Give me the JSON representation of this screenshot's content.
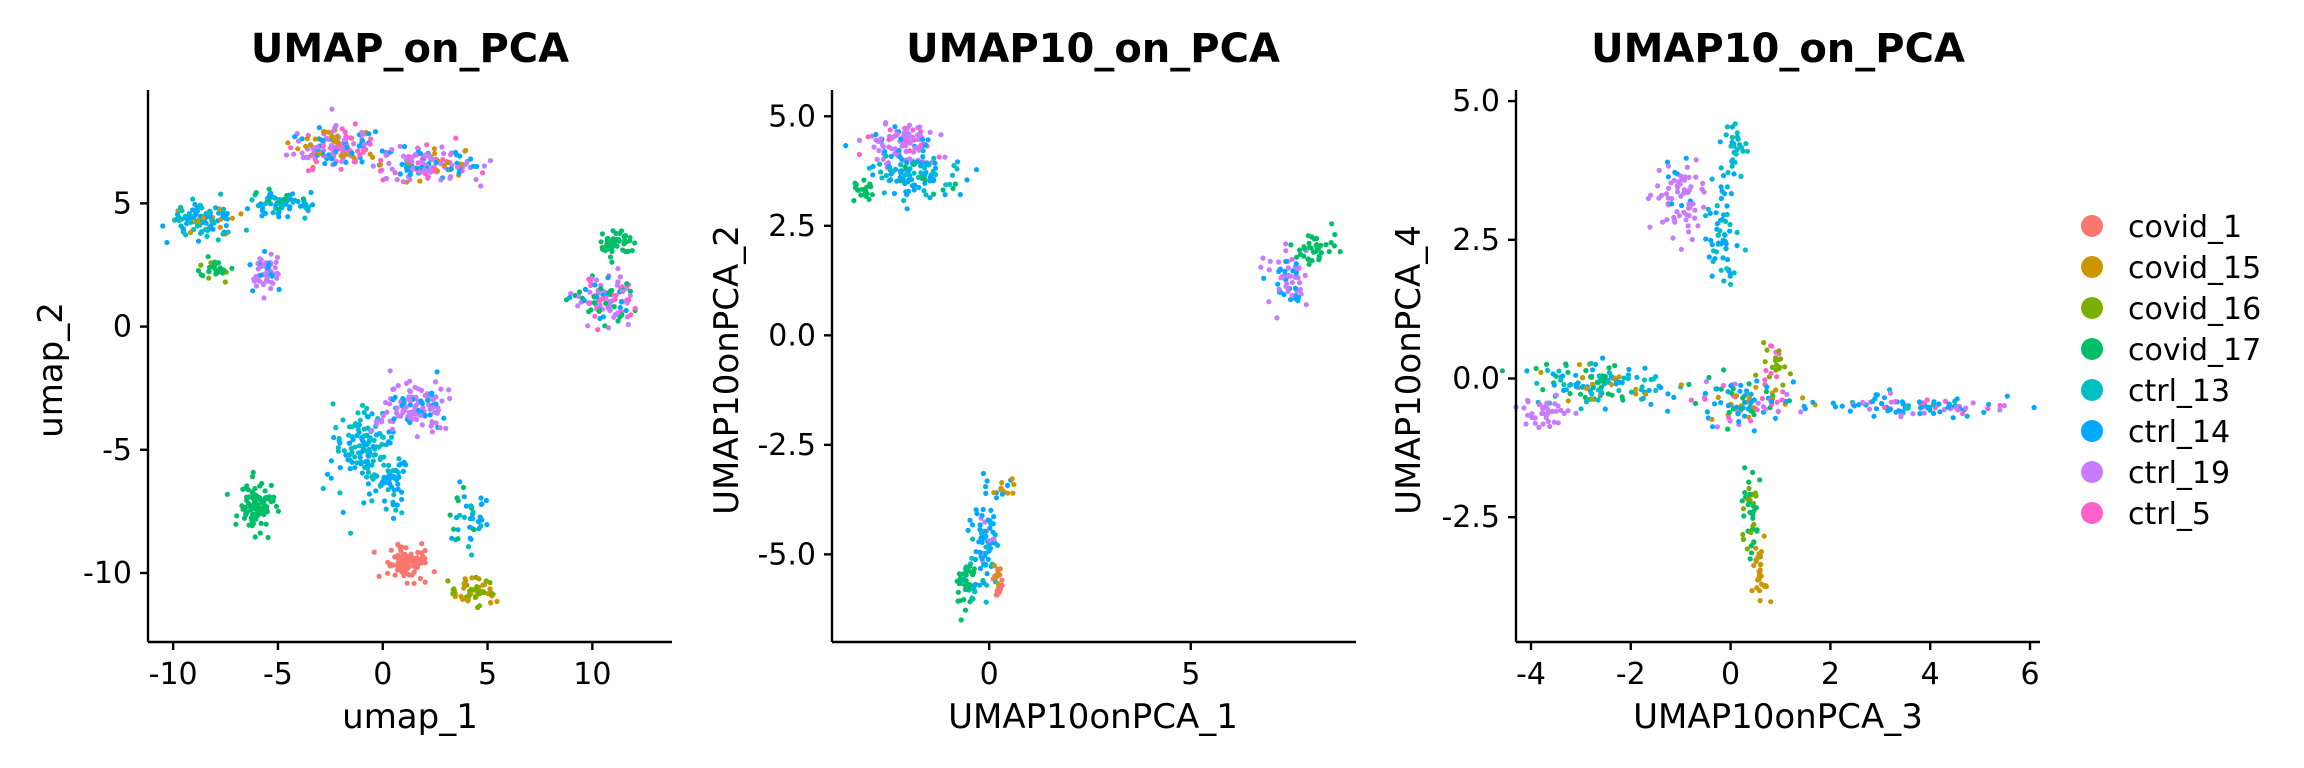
{
  "chart_data": [
    {
      "type": "scatter",
      "title": "UMAP_on_PCA",
      "xlabel": "umap_1",
      "ylabel": "umap_2",
      "xlim": [
        -11.2,
        13.8
      ],
      "ylim": [
        -12.8,
        9.6
      ],
      "xticks": [
        -10,
        -5,
        0,
        5,
        10
      ],
      "xtick_labels": [
        "-10",
        "-5",
        "0",
        "5",
        "10"
      ],
      "yticks": [
        -10,
        -5,
        0,
        5
      ],
      "ytick_labels": [
        "-10",
        "-5",
        "0",
        "5"
      ],
      "clusters": [
        {
          "cx": -2.2,
          "cy": 7.3,
          "rx": 2.2,
          "ry": 0.8,
          "n": 160,
          "mix": {
            "ctrl_5": 2,
            "ctrl_19": 2,
            "ctrl_14": 1,
            "covid_15": 1
          }
        },
        {
          "cx": 2.2,
          "cy": 6.6,
          "rx": 2.2,
          "ry": 0.7,
          "n": 150,
          "mix": {
            "ctrl_19": 3,
            "ctrl_14": 2,
            "covid_15": 1,
            "ctrl_5": 1
          }
        },
        {
          "cx": -8.6,
          "cy": 4.3,
          "rx": 1.5,
          "ry": 0.7,
          "n": 110,
          "mix": {
            "ctrl_14": 3,
            "ctrl_13": 2,
            "covid_15": 1
          }
        },
        {
          "cx": -5.0,
          "cy": 5.0,
          "rx": 1.3,
          "ry": 0.6,
          "n": 70,
          "mix": {
            "ctrl_13": 2,
            "covid_17": 1,
            "ctrl_14": 2
          }
        },
        {
          "cx": -5.6,
          "cy": 2.3,
          "rx": 0.7,
          "ry": 0.8,
          "n": 60,
          "mix": {
            "ctrl_19": 4,
            "ctrl_14": 1
          }
        },
        {
          "cx": -8.0,
          "cy": 2.4,
          "rx": 0.7,
          "ry": 0.4,
          "n": 30,
          "mix": {
            "covid_17": 3,
            "covid_16": 1
          }
        },
        {
          "cx": 11.1,
          "cy": 3.3,
          "rx": 0.9,
          "ry": 0.5,
          "n": 45,
          "mix": {
            "covid_17": 4
          }
        },
        {
          "cx": 10.6,
          "cy": 1.1,
          "rx": 1.5,
          "ry": 1.1,
          "n": 110,
          "mix": {
            "ctrl_19": 3,
            "covid_17": 2,
            "ctrl_14": 1,
            "ctrl_5": 1
          }
        },
        {
          "cx": -1.0,
          "cy": -5.0,
          "rx": 1.3,
          "ry": 1.8,
          "n": 130,
          "mix": {
            "ctrl_13": 3,
            "ctrl_14": 3
          }
        },
        {
          "cx": 1.5,
          "cy": -3.3,
          "rx": 1.8,
          "ry": 0.9,
          "n": 120,
          "mix": {
            "ctrl_19": 5,
            "ctrl_14": 1
          }
        },
        {
          "cx": 0.4,
          "cy": -6.3,
          "rx": 0.6,
          "ry": 1.2,
          "n": 50,
          "mix": {
            "ctrl_14": 3,
            "ctrl_13": 1
          }
        },
        {
          "cx": -6.0,
          "cy": -7.4,
          "rx": 0.9,
          "ry": 1.0,
          "n": 90,
          "mix": {
            "covid_17": 5
          }
        },
        {
          "cx": 1.1,
          "cy": -9.6,
          "rx": 1.0,
          "ry": 0.7,
          "n": 90,
          "mix": {
            "covid_1": 5
          }
        },
        {
          "cx": 4.4,
          "cy": -10.8,
          "rx": 1.0,
          "ry": 0.6,
          "n": 60,
          "mix": {
            "covid_16": 2,
            "covid_15": 3
          }
        },
        {
          "cx": 4.3,
          "cy": -7.8,
          "rx": 1.0,
          "ry": 1.2,
          "n": 40,
          "mix": {
            "ctrl_14": 2,
            "covid_17": 1,
            "ctrl_13": 1
          }
        }
      ]
    },
    {
      "type": "scatter",
      "title": "UMAP10_on_PCA",
      "xlabel": "UMAP10onPCA_1",
      "ylabel": "UMAP10onPCA_2",
      "xlim": [
        -3.9,
        9.1
      ],
      "ylim": [
        -7.0,
        5.6
      ],
      "xticks": [
        0,
        5
      ],
      "xtick_labels": [
        "0",
        "5"
      ],
      "yticks": [
        -5.0,
        -2.5,
        0.0,
        2.5,
        5.0
      ],
      "ytick_labels": [
        "-5.0",
        "-2.5",
        "0.0",
        "2.5",
        "5.0"
      ],
      "clusters": [
        {
          "cx": -2.2,
          "cy": 4.4,
          "rx": 0.8,
          "ry": 0.5,
          "n": 110,
          "mix": {
            "ctrl_19": 4,
            "ctrl_5": 1,
            "ctrl_14": 1
          }
        },
        {
          "cx": -1.7,
          "cy": 3.7,
          "rx": 1.1,
          "ry": 0.6,
          "n": 100,
          "mix": {
            "ctrl_14": 3,
            "ctrl_13": 2,
            "covid_17": 1
          }
        },
        {
          "cx": -3.1,
          "cy": 3.3,
          "rx": 0.3,
          "ry": 0.3,
          "n": 20,
          "mix": {
            "covid_17": 3
          }
        },
        {
          "cx": 7.4,
          "cy": 1.3,
          "rx": 0.5,
          "ry": 0.6,
          "n": 60,
          "mix": {
            "ctrl_19": 3,
            "ctrl_14": 2
          }
        },
        {
          "cx": 8.1,
          "cy": 2.0,
          "rx": 0.5,
          "ry": 0.4,
          "n": 40,
          "mix": {
            "covid_17": 4
          }
        },
        {
          "cx": -0.6,
          "cy": -5.7,
          "rx": 0.25,
          "ry": 0.6,
          "n": 50,
          "mix": {
            "covid_17": 3,
            "ctrl_13": 1
          }
        },
        {
          "cx": -0.1,
          "cy": -4.7,
          "rx": 0.3,
          "ry": 1.1,
          "n": 70,
          "mix": {
            "ctrl_14": 3,
            "ctrl_19": 1,
            "ctrl_13": 1
          }
        },
        {
          "cx": 0.2,
          "cy": -5.6,
          "rx": 0.15,
          "ry": 0.4,
          "n": 20,
          "mix": {
            "covid_15": 2,
            "covid_1": 1
          }
        },
        {
          "cx": 0.4,
          "cy": -3.5,
          "rx": 0.4,
          "ry": 0.3,
          "n": 15,
          "mix": {
            "ctrl_14": 1,
            "ctrl_5": 1,
            "covid_15": 1
          }
        }
      ]
    },
    {
      "type": "scatter",
      "title": "UMAP10_on_PCA",
      "xlabel": "UMAP10onPCA_3",
      "ylabel": "UMAP10onPCA_4",
      "xlim": [
        -4.3,
        6.2
      ],
      "ylim": [
        -4.75,
        5.2
      ],
      "xticks": [
        -4,
        -2,
        0,
        2,
        4,
        6
      ],
      "xtick_labels": [
        "-4",
        "-2",
        "0",
        "2",
        "4",
        "6"
      ],
      "yticks": [
        -2.5,
        0.0,
        2.5,
        5.0
      ],
      "ytick_labels": [
        "-2.5",
        "0.0",
        "2.5",
        "5.0"
      ],
      "clusters": [
        {
          "cx": -1.0,
          "cy": 3.2,
          "rx": 0.5,
          "ry": 0.8,
          "n": 70,
          "mix": {
            "ctrl_19": 5,
            "ctrl_14": 1
          }
        },
        {
          "cx": -0.2,
          "cy": 2.6,
          "rx": 0.3,
          "ry": 1.0,
          "n": 60,
          "mix": {
            "ctrl_14": 3,
            "ctrl_13": 2
          }
        },
        {
          "cx": 0.1,
          "cy": 4.2,
          "rx": 0.2,
          "ry": 0.5,
          "n": 30,
          "mix": {
            "ctrl_13": 3,
            "ctrl_14": 1
          }
        },
        {
          "cx": -2.6,
          "cy": -0.1,
          "rx": 1.3,
          "ry": 0.4,
          "n": 130,
          "mix": {
            "ctrl_14": 2,
            "ctrl_13": 2,
            "covid_17": 2,
            "covid_15": 1
          }
        },
        {
          "cx": -3.7,
          "cy": -0.6,
          "rx": 0.5,
          "ry": 0.3,
          "n": 40,
          "mix": {
            "ctrl_19": 4
          }
        },
        {
          "cx": 0.3,
          "cy": -0.4,
          "rx": 1.0,
          "ry": 0.4,
          "n": 110,
          "mix": {
            "ctrl_14": 2,
            "ctrl_5": 1,
            "ctrl_19": 1,
            "covid_15": 1,
            "covid_17": 1
          }
        },
        {
          "cx": 3.6,
          "cy": -0.5,
          "rx": 2.0,
          "ry": 0.18,
          "n": 100,
          "mix": {
            "ctrl_14": 3,
            "ctrl_13": 1,
            "ctrl_19": 1,
            "ctrl_5": 1
          }
        },
        {
          "cx": 0.4,
          "cy": -2.3,
          "rx": 0.2,
          "ry": 0.8,
          "n": 45,
          "mix": {
            "covid_17": 3,
            "covid_16": 2
          }
        },
        {
          "cx": 0.6,
          "cy": -3.4,
          "rx": 0.15,
          "ry": 0.6,
          "n": 30,
          "mix": {
            "covid_15": 4
          }
        },
        {
          "cx": 0.9,
          "cy": 0.2,
          "rx": 0.3,
          "ry": 0.3,
          "n": 25,
          "mix": {
            "covid_16": 2,
            "ctrl_5": 2
          }
        }
      ]
    }
  ],
  "legend": {
    "placement": "right",
    "entries": [
      {
        "label": "covid_1",
        "color": "#F8766D"
      },
      {
        "label": "covid_15",
        "color": "#CD9600"
      },
      {
        "label": "covid_16",
        "color": "#7CAE00"
      },
      {
        "label": "covid_17",
        "color": "#00BE67"
      },
      {
        "label": "ctrl_13",
        "color": "#00BFC4"
      },
      {
        "label": "ctrl_14",
        "color": "#00A9FF"
      },
      {
        "label": "ctrl_19",
        "color": "#C77CFF"
      },
      {
        "label": "ctrl_5",
        "color": "#FF61CC"
      }
    ]
  }
}
